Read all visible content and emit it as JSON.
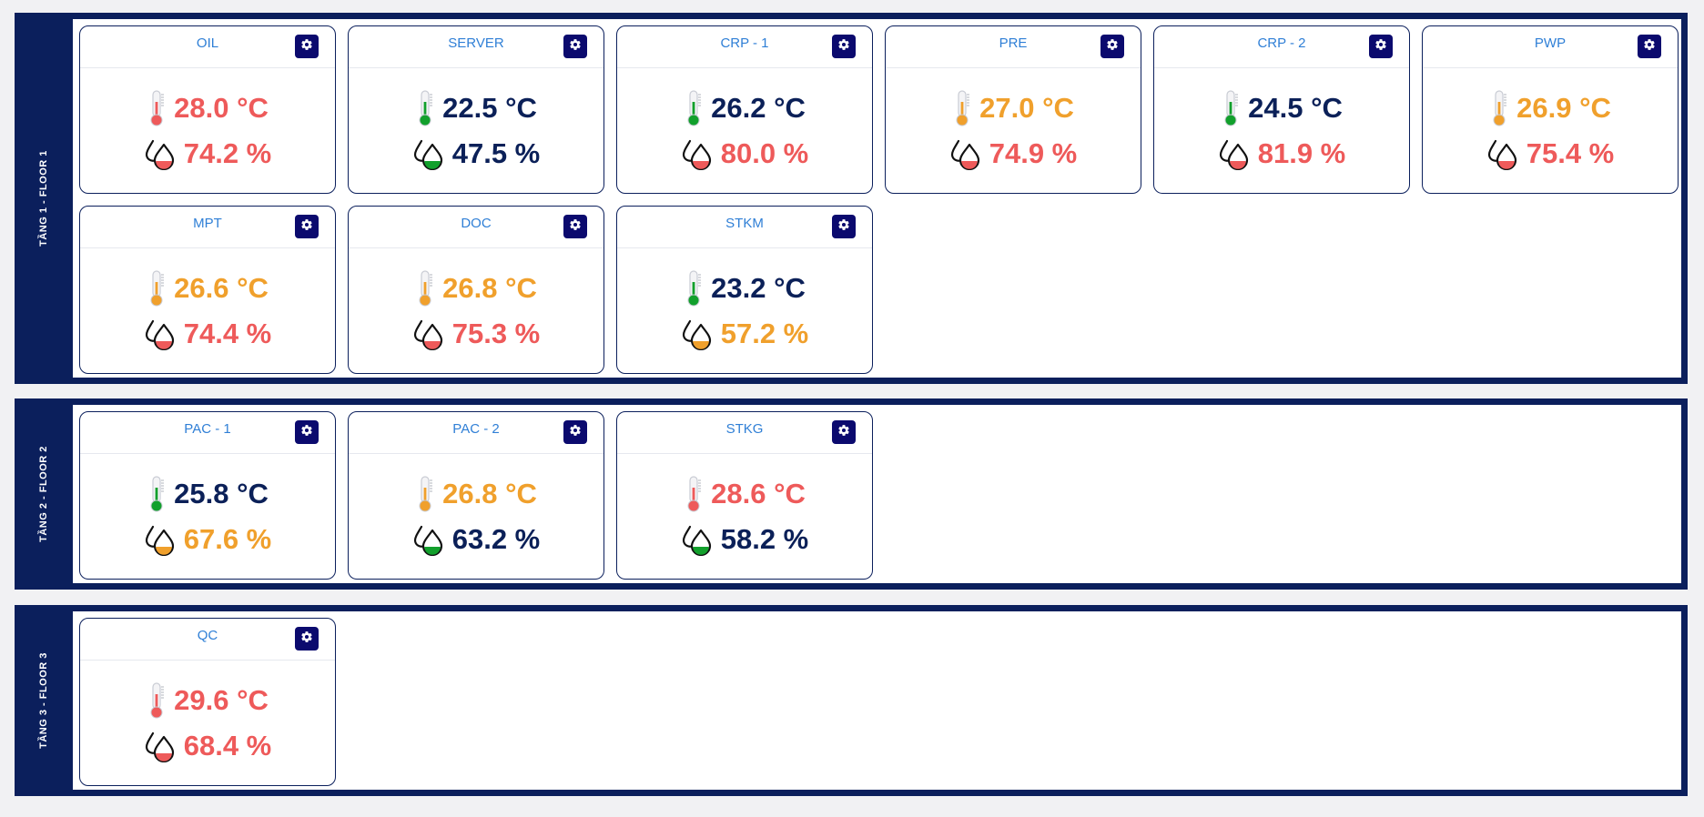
{
  "status_colors": {
    "red": "#ee5a5a",
    "orange": "#f0a02c",
    "green": "#12a02c",
    "navy": "#0b2058"
  },
  "floors": [
    {
      "label": "TẦNG 1 - FLOOR 1",
      "rooms": [
        {
          "name": "OIL",
          "temp": "28.0 °C",
          "temp_status": "red",
          "humidity": "74.2 %",
          "hum_status": "red"
        },
        {
          "name": "SERVER",
          "temp": "22.5 °C",
          "temp_status": "green",
          "humidity": "47.5 %",
          "hum_status": "green"
        },
        {
          "name": "CRP - 1",
          "temp": "26.2 °C",
          "temp_status": "green",
          "humidity": "80.0 %",
          "hum_status": "red"
        },
        {
          "name": "PRE",
          "temp": "27.0 °C",
          "temp_status": "orange",
          "humidity": "74.9 %",
          "hum_status": "red"
        },
        {
          "name": "CRP - 2",
          "temp": "24.5 °C",
          "temp_status": "green",
          "humidity": "81.9 %",
          "hum_status": "red"
        },
        {
          "name": "PWP",
          "temp": "26.9 °C",
          "temp_status": "orange",
          "humidity": "75.4 %",
          "hum_status": "red"
        },
        {
          "name": "MPT",
          "temp": "26.6 °C",
          "temp_status": "orange",
          "humidity": "74.4 %",
          "hum_status": "red"
        },
        {
          "name": "DOC",
          "temp": "26.8 °C",
          "temp_status": "orange",
          "humidity": "75.3 %",
          "hum_status": "red"
        },
        {
          "name": "STKM",
          "temp": "23.2 °C",
          "temp_status": "green",
          "humidity": "57.2 %",
          "hum_status": "orange"
        }
      ]
    },
    {
      "label": "TẦNG 2 - FLOOR 2",
      "rooms": [
        {
          "name": "PAC - 1",
          "temp": "25.8 °C",
          "temp_status": "green",
          "humidity": "67.6 %",
          "hum_status": "orange"
        },
        {
          "name": "PAC - 2",
          "temp": "26.8 °C",
          "temp_status": "orange",
          "humidity": "63.2 %",
          "hum_status": "green"
        },
        {
          "name": "STKG",
          "temp": "28.6 °C",
          "temp_status": "red",
          "humidity": "58.2 %",
          "hum_status": "green"
        }
      ]
    },
    {
      "label": "TẦNG 3 - FLOOR 3",
      "rooms": [
        {
          "name": "QC",
          "temp": "29.6 °C",
          "temp_status": "red",
          "humidity": "68.4 %",
          "hum_status": "red"
        }
      ]
    }
  ]
}
